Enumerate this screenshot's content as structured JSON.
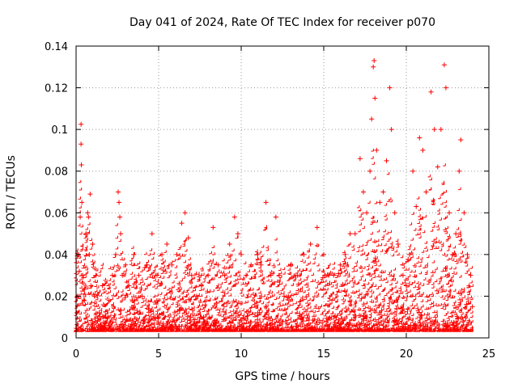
{
  "chart_data": {
    "type": "scatter",
    "title": "Day 041 of 2024, Rate Of TEC Index for receiver p070",
    "xlabel": "GPS time / hours",
    "ylabel": "ROTI / TECUs",
    "xlim": [
      0,
      25
    ],
    "ylim": [
      0,
      0.14
    ],
    "x_ticks": [
      0,
      5,
      10,
      15,
      20,
      25
    ],
    "x_tick_labels": [
      "0",
      "5",
      "10",
      "15",
      "20",
      "25"
    ],
    "y_ticks": [
      0,
      0.02,
      0.04,
      0.06,
      0.08,
      0.1,
      0.12,
      0.14
    ],
    "y_tick_labels": [
      "0",
      "0.02",
      "0.04",
      "0.06",
      "0.08",
      "0.1",
      "0.12",
      "0.14"
    ],
    "grid": true,
    "marker": "plus",
    "color": "#ff0000",
    "series": [
      {
        "name": "ROTI",
        "points": [
          [
            0.05,
            0.012
          ],
          [
            0.1,
            0.02
          ],
          [
            0.15,
            0.04
          ],
          [
            0.2,
            0.032
          ],
          [
            0.25,
            0.058
          ],
          [
            0.3,
            0.1025
          ],
          [
            0.3,
            0.093
          ],
          [
            0.32,
            0.083
          ],
          [
            0.35,
            0.065
          ],
          [
            0.4,
            0.03
          ],
          [
            0.5,
            0.018
          ],
          [
            0.6,
            0.05
          ],
          [
            0.7,
            0.06
          ],
          [
            0.75,
            0.058
          ],
          [
            0.8,
            0.04
          ],
          [
            0.85,
            0.069
          ],
          [
            0.9,
            0.025
          ],
          [
            1.0,
            0.045
          ],
          [
            1.1,
            0.02
          ],
          [
            1.2,
            0.03
          ],
          [
            1.4,
            0.012
          ],
          [
            1.6,
            0.025
          ],
          [
            1.8,
            0.01
          ],
          [
            2.0,
            0.018
          ],
          [
            2.2,
            0.03
          ],
          [
            2.4,
            0.04
          ],
          [
            2.55,
            0.07
          ],
          [
            2.6,
            0.065
          ],
          [
            2.65,
            0.058
          ],
          [
            2.7,
            0.05
          ],
          [
            2.8,
            0.03
          ],
          [
            3.0,
            0.035
          ],
          [
            3.2,
            0.025
          ],
          [
            3.5,
            0.04
          ],
          [
            3.8,
            0.03
          ],
          [
            4.0,
            0.02
          ],
          [
            4.3,
            0.035
          ],
          [
            4.6,
            0.05
          ],
          [
            4.9,
            0.03
          ],
          [
            5.2,
            0.04
          ],
          [
            5.5,
            0.045
          ],
          [
            5.8,
            0.035
          ],
          [
            6.1,
            0.04
          ],
          [
            6.4,
            0.055
          ],
          [
            6.6,
            0.06
          ],
          [
            6.8,
            0.048
          ],
          [
            7.0,
            0.03
          ],
          [
            7.3,
            0.02
          ],
          [
            7.6,
            0.025
          ],
          [
            8.0,
            0.03
          ],
          [
            8.3,
            0.053
          ],
          [
            8.6,
            0.035
          ],
          [
            9.0,
            0.03
          ],
          [
            9.3,
            0.045
          ],
          [
            9.6,
            0.058
          ],
          [
            9.8,
            0.05
          ],
          [
            10.0,
            0.04
          ],
          [
            10.3,
            0.03
          ],
          [
            10.6,
            0.035
          ],
          [
            11.0,
            0.04
          ],
          [
            11.2,
            0.035
          ],
          [
            11.5,
            0.065
          ],
          [
            11.8,
            0.03
          ],
          [
            12.1,
            0.058
          ],
          [
            12.3,
            0.03
          ],
          [
            12.6,
            0.02
          ],
          [
            13.0,
            0.035
          ],
          [
            13.4,
            0.03
          ],
          [
            13.8,
            0.04
          ],
          [
            14.2,
            0.045
          ],
          [
            14.6,
            0.053
          ],
          [
            15.0,
            0.04
          ],
          [
            15.3,
            0.03
          ],
          [
            15.6,
            0.03
          ],
          [
            16.0,
            0.035
          ],
          [
            16.3,
            0.04
          ],
          [
            16.6,
            0.05
          ],
          [
            16.9,
            0.05
          ],
          [
            17.2,
            0.086
          ],
          [
            17.4,
            0.07
          ],
          [
            17.6,
            0.06
          ],
          [
            17.8,
            0.08
          ],
          [
            17.9,
            0.105
          ],
          [
            18.0,
            0.13
          ],
          [
            18.05,
            0.133
          ],
          [
            18.1,
            0.115
          ],
          [
            18.2,
            0.09
          ],
          [
            18.4,
            0.065
          ],
          [
            18.6,
            0.07
          ],
          [
            18.8,
            0.085
          ],
          [
            19.0,
            0.12
          ],
          [
            19.1,
            0.1
          ],
          [
            19.3,
            0.06
          ],
          [
            19.5,
            0.045
          ],
          [
            19.8,
            0.03
          ],
          [
            20.0,
            0.025
          ],
          [
            20.2,
            0.04
          ],
          [
            20.4,
            0.08
          ],
          [
            20.6,
            0.063
          ],
          [
            20.8,
            0.096
          ],
          [
            21.0,
            0.09
          ],
          [
            21.2,
            0.07
          ],
          [
            21.5,
            0.118
          ],
          [
            21.7,
            0.1
          ],
          [
            21.9,
            0.082
          ],
          [
            22.1,
            0.1
          ],
          [
            22.3,
            0.131
          ],
          [
            22.4,
            0.12
          ],
          [
            22.6,
            0.06
          ],
          [
            22.8,
            0.04
          ],
          [
            23.0,
            0.05
          ],
          [
            23.2,
            0.08
          ],
          [
            23.3,
            0.095
          ],
          [
            23.5,
            0.06
          ],
          [
            23.7,
            0.04
          ],
          [
            23.9,
            0.03
          ],
          [
            24.0,
            0.015
          ]
        ]
      }
    ]
  }
}
